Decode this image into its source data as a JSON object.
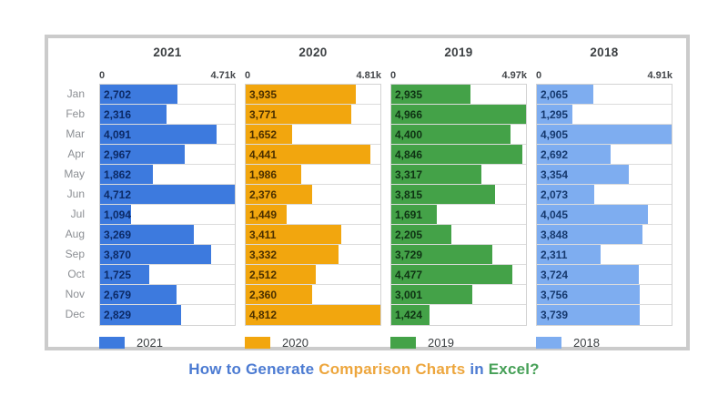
{
  "page_title_parts": [
    {
      "text": "How to Generate ",
      "color": "#4c7bd2"
    },
    {
      "text": "Comparison Charts",
      "color": "#eda63d"
    },
    {
      "text": " in ",
      "color": "#4c7bd2"
    },
    {
      "text": "Excel?",
      "color": "#46a057"
    }
  ],
  "chart_data": {
    "type": "bar",
    "orientation": "horizontal",
    "grid": true,
    "legend_position": "bottom",
    "categories": [
      "Jan",
      "Feb",
      "Mar",
      "Apr",
      "May",
      "Jun",
      "Jul",
      "Aug",
      "Sep",
      "Oct",
      "Nov",
      "Dec"
    ],
    "panels": [
      {
        "name": "2021",
        "color": "#3d7ade",
        "value_label_color": "#0c2a66",
        "axis_min_label": "0",
        "axis_max_label": "4.71k",
        "axis_max": 4712,
        "values": [
          2702,
          2316,
          4091,
          2967,
          1862,
          4712,
          1094,
          3269,
          3870,
          1725,
          2679,
          2829
        ]
      },
      {
        "name": "2020",
        "color": "#f2a60e",
        "value_label_color": "#4a2f00",
        "axis_min_label": "0",
        "axis_max_label": "4.81k",
        "axis_max": 4812,
        "values": [
          3935,
          3771,
          1652,
          4441,
          1986,
          2376,
          1449,
          3411,
          3332,
          2512,
          2360,
          4812
        ]
      },
      {
        "name": "2019",
        "color": "#44a248",
        "value_label_color": "#0f3314",
        "axis_min_label": "0",
        "axis_max_label": "4.97k",
        "axis_max": 4966,
        "values": [
          2935,
          4966,
          4400,
          4846,
          3317,
          3815,
          1691,
          2205,
          3729,
          4477,
          3001,
          1424
        ]
      },
      {
        "name": "2018",
        "color": "#7eadf0",
        "value_label_color": "#16396e",
        "axis_min_label": "0",
        "axis_max_label": "4.91k",
        "axis_max": 4905,
        "values": [
          2065,
          1295,
          4905,
          2692,
          3354,
          2073,
          4045,
          3848,
          2311,
          3724,
          3756,
          3739
        ]
      }
    ]
  }
}
